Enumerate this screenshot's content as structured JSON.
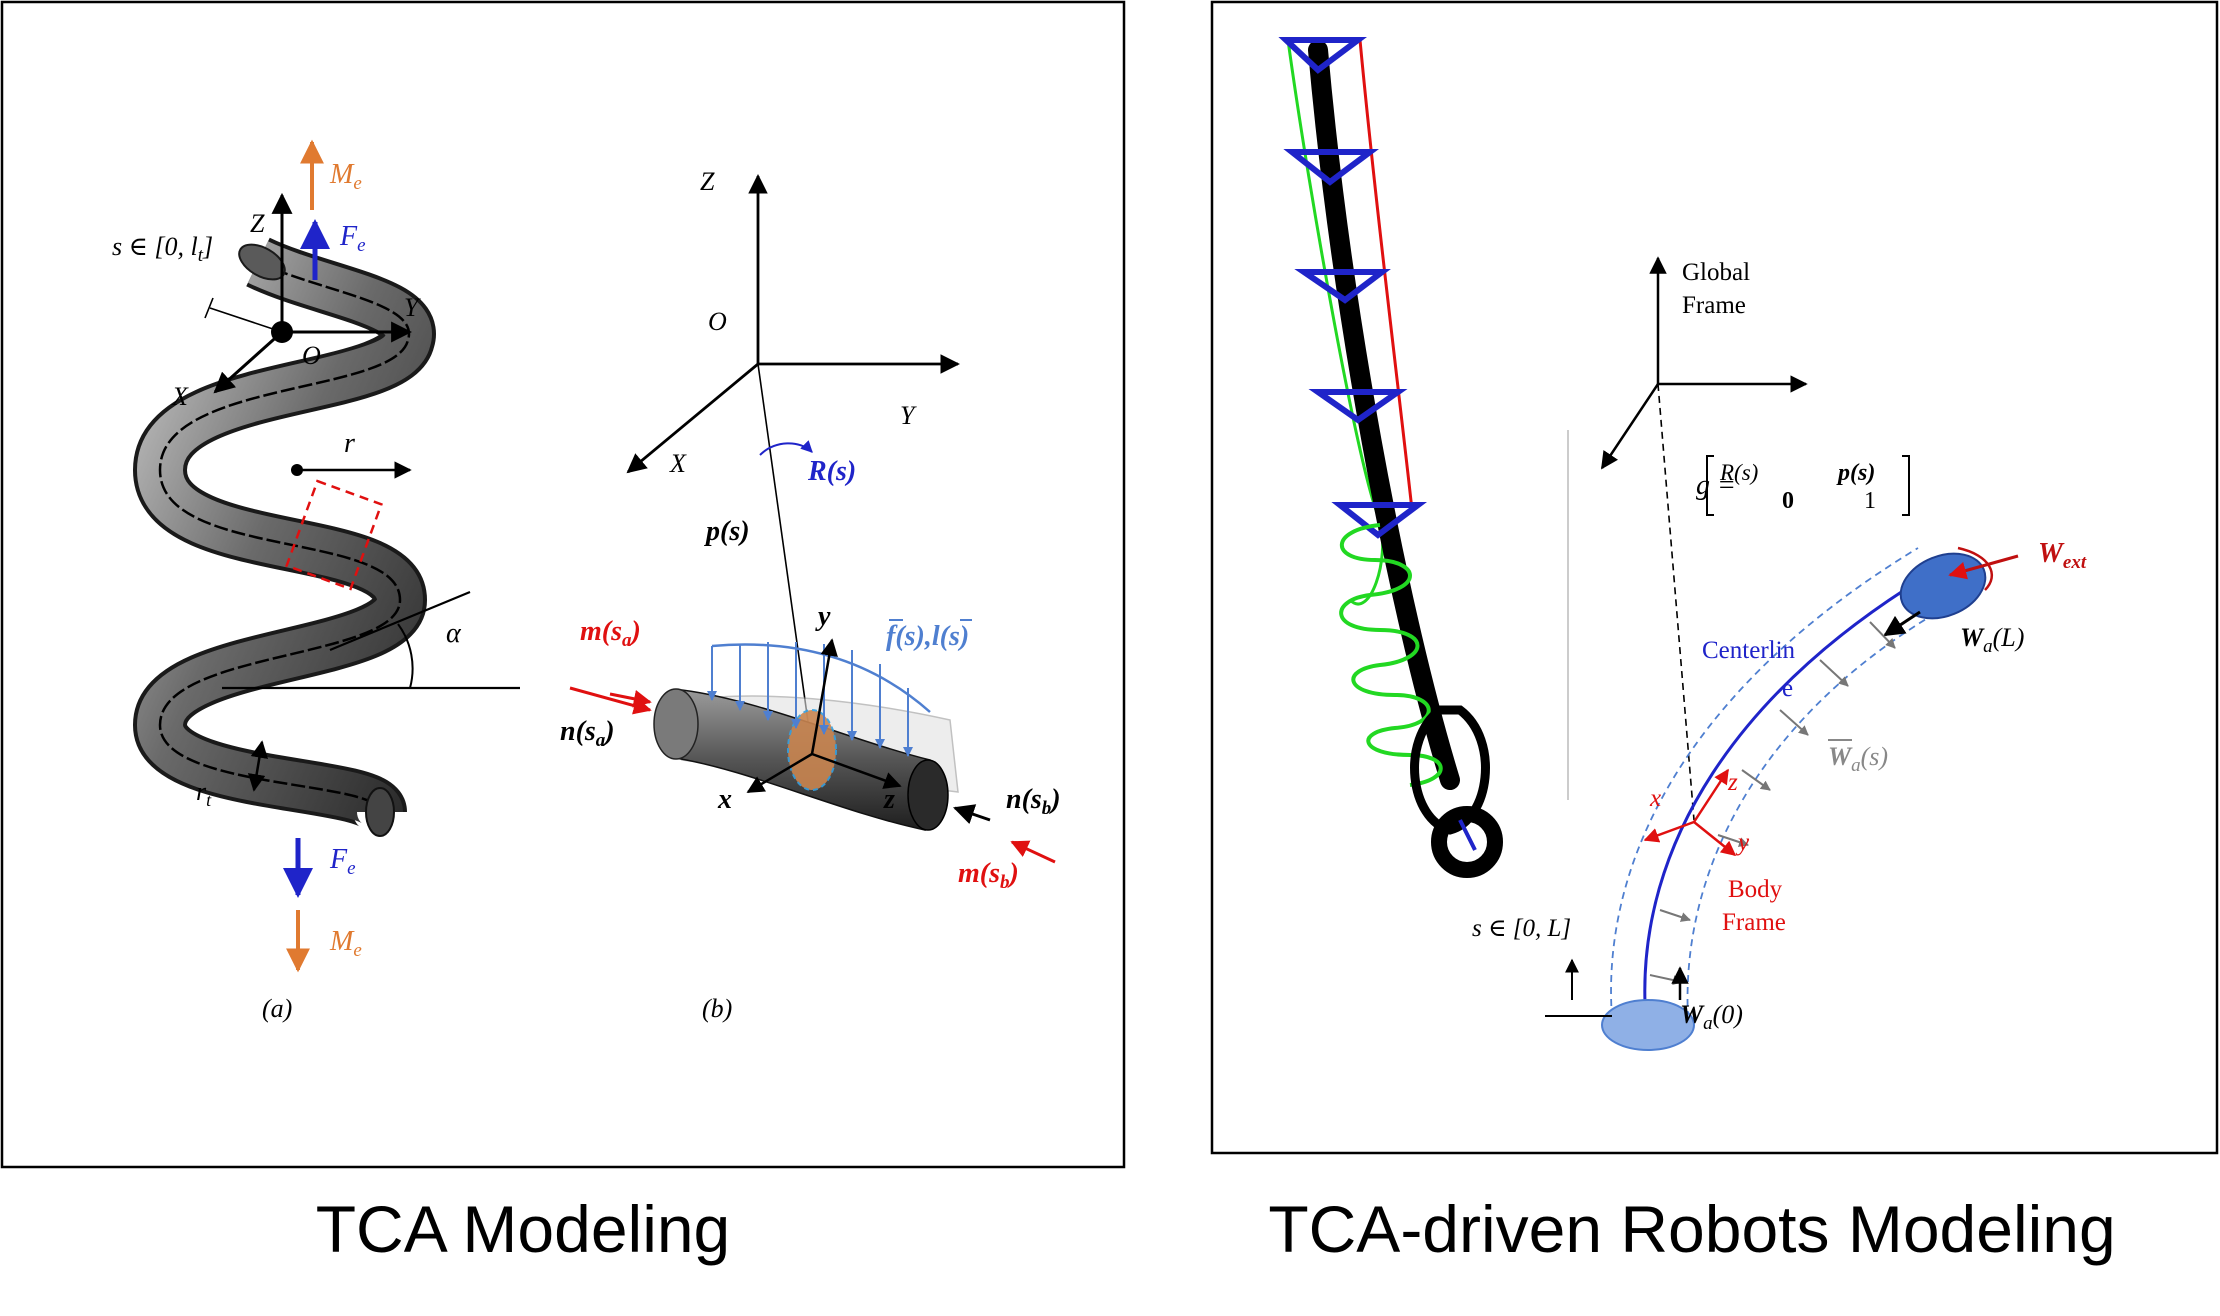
{
  "captions": {
    "left": "TCA Modeling",
    "right": "TCA-driven Robots Modeling"
  },
  "panel_a": {
    "sub_label": "(a)",
    "arc_param": {
      "main": "s ∈ [0, l",
      "sub": "t",
      "tail": "]"
    },
    "axis_z": "Z",
    "axis_y": "Y",
    "axis_x": "X",
    "origin": "O",
    "moment_top": {
      "main": "M",
      "sub": "e"
    },
    "force_top": {
      "main": "F",
      "sub": "e"
    },
    "force_bottom": {
      "main": "F",
      "sub": "e"
    },
    "moment_bottom": {
      "main": "M",
      "sub": "e"
    },
    "radius": "r",
    "helix_angle": "α",
    "tube_radius": {
      "main": "r",
      "sub": "t"
    }
  },
  "panel_b": {
    "sub_label": "(b)",
    "axis_z": "Z",
    "axis_y": "Y",
    "axis_x": "X",
    "origin": "O",
    "rotation": "R(s)",
    "position": "p(s)",
    "moment_a": {
      "main": "m(s",
      "sub": "a",
      "tail": ")"
    },
    "force_a": {
      "main": "n(s",
      "sub": "a",
      "tail": ")"
    },
    "force_b": {
      "main": "n(s",
      "sub": "b",
      "tail": ")"
    },
    "moment_b": {
      "main": "m(s",
      "sub": "b",
      "tail": ")"
    },
    "dist_load": {
      "f": "f",
      "f_tail": "(s),",
      "l": "l",
      "l_tail": "(s)"
    },
    "body_x": "x",
    "body_y": "y",
    "body_z": "z"
  },
  "panel_c": {
    "global_frame_1": "Global",
    "global_frame_2": "Frame",
    "g_lhs": "g =",
    "g_r": "R(s)",
    "g_p": "p(s)",
    "g_zero": "0",
    "g_one": "1",
    "w_ext": {
      "main": "W",
      "sub": "ext"
    },
    "wa_L": {
      "main": "W",
      "sub": "a",
      "tail": "(L)"
    },
    "wa_s": {
      "main": "W",
      "sub": "a",
      "tail": "(s)"
    },
    "wa_0": {
      "main": "W",
      "sub": "a",
      "tail": "(0)"
    },
    "centerline_1": "Centerlin",
    "centerline_2": "e",
    "body_x": "x",
    "body_y": "y",
    "body_z": "z",
    "body_frame_1": "Body",
    "body_frame_2": "Frame",
    "arc_param": "s ∈ [0, L]"
  },
  "colors": {
    "force_blue": "#1f24c9",
    "moment_orange": "#e07a30",
    "load_blue": "#4f7fd0",
    "red": "#e01010",
    "green": "#22d822",
    "grey_arrow": "#888888"
  }
}
